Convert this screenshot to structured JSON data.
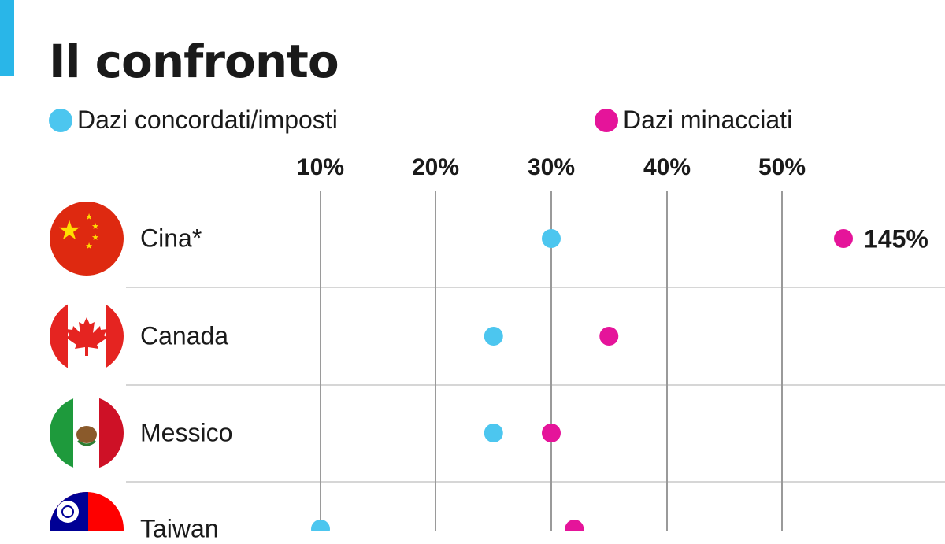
{
  "title": "Il confronto",
  "legend": [
    {
      "label": "Dazi concordati/imposti",
      "color": "#4cc6ef"
    },
    {
      "label": "Dazi minacciati",
      "color": "#e5149a"
    }
  ],
  "colors": {
    "accent": "#29b6e8",
    "grid": "#9a9a9a",
    "separator": "#d6d6d6"
  },
  "chart_data": {
    "type": "dumbbell",
    "title": "Il confronto",
    "x_ticks": [
      "10%",
      "20%",
      "30%",
      "40%",
      "50%"
    ],
    "x_tick_values": [
      10,
      20,
      30,
      40,
      50
    ],
    "x_range": [
      0,
      60
    ],
    "x_unit": "%",
    "grid": true,
    "legend_position": "top",
    "series": [
      {
        "name": "Dazi concordati/imposti",
        "color": "#4cc6ef"
      },
      {
        "name": "Dazi minacciati",
        "color": "#e5149a"
      }
    ],
    "rows": [
      {
        "country": "Cina*",
        "flag": "china-flag",
        "imposed": 30,
        "threatened": 145,
        "threatened_label": "145%",
        "axis_break": true
      },
      {
        "country": "Canada",
        "flag": "canada-flag",
        "imposed": 25,
        "threatened": 35,
        "threatened_label": ""
      },
      {
        "country": "Messico",
        "flag": "mexico-flag",
        "imposed": 25,
        "threatened": 30,
        "threatened_label": ""
      },
      {
        "country": "Taiwan",
        "flag": "taiwan-flag",
        "imposed": 10,
        "threatened": 32,
        "threatened_label": ""
      }
    ]
  }
}
